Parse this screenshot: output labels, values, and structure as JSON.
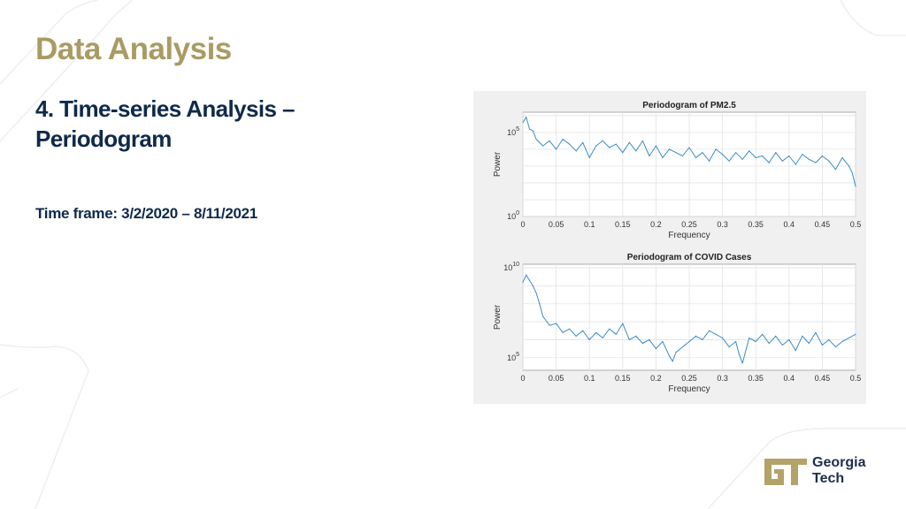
{
  "slide": {
    "title": "Data Analysis",
    "subtitle_line1": "4. Time-series Analysis –",
    "subtitle_line2": "Periodogram",
    "timeframe": "Time frame: 3/2/2020 – 8/11/2021"
  },
  "logo": {
    "monogram": "GT",
    "line1": "Georgia",
    "line2": "Tech",
    "color": "#b3a369"
  },
  "colors": {
    "title": "#a99b63",
    "heading": "#0f2a4a",
    "series": "#3a8dc8"
  },
  "chart_data": [
    {
      "type": "line",
      "title": "Periodogram of PM2.5",
      "xlabel": "Frequency",
      "ylabel": "Power",
      "xlim": [
        0,
        0.5
      ],
      "ylim_log10": [
        0,
        6.2
      ],
      "y_scale": "log",
      "grid": true,
      "xticks": [
        "0",
        "0.05",
        "0.1",
        "0.15",
        "0.2",
        "0.25",
        "0.3",
        "0.35",
        "0.4",
        "0.45",
        "0.5"
      ],
      "yticks": [
        {
          "base": "10",
          "exp": "0",
          "value_log10": 0
        },
        {
          "base": "10",
          "exp": "5",
          "value_log10": 5
        }
      ],
      "series": [
        {
          "x": [
            0,
            0.005,
            0.01,
            0.015,
            0.02,
            0.03,
            0.04,
            0.05,
            0.06,
            0.07,
            0.08,
            0.09,
            0.1,
            0.11,
            0.12,
            0.13,
            0.14,
            0.15,
            0.16,
            0.17,
            0.18,
            0.19,
            0.2,
            0.21,
            0.22,
            0.23,
            0.24,
            0.25,
            0.26,
            0.27,
            0.28,
            0.29,
            0.3,
            0.31,
            0.32,
            0.33,
            0.34,
            0.35,
            0.36,
            0.37,
            0.38,
            0.39,
            0.4,
            0.41,
            0.42,
            0.43,
            0.44,
            0.45,
            0.46,
            0.47,
            0.48,
            0.49,
            0.495,
            0.5
          ],
          "y_log10": [
            5.6,
            5.9,
            5.2,
            5.1,
            4.6,
            4.2,
            4.5,
            4.0,
            4.6,
            4.3,
            3.9,
            4.4,
            3.5,
            4.2,
            4.5,
            4.1,
            4.3,
            3.8,
            4.4,
            3.9,
            4.5,
            3.6,
            4.2,
            3.5,
            4.0,
            3.8,
            3.6,
            4.1,
            3.5,
            3.8,
            3.3,
            4.0,
            3.7,
            3.3,
            3.8,
            3.4,
            3.9,
            3.5,
            3.6,
            3.2,
            3.8,
            3.3,
            3.6,
            3.1,
            3.7,
            3.4,
            3.2,
            3.6,
            3.3,
            2.8,
            3.5,
            3.0,
            2.6,
            1.8
          ]
        }
      ]
    },
    {
      "type": "line",
      "title": "Periodogram of COVID Cases",
      "xlabel": "Frequency",
      "ylabel": "Power",
      "xlim": [
        0,
        0.5
      ],
      "ylim_log10": [
        4.3,
        10.2
      ],
      "y_scale": "log",
      "grid": true,
      "xticks": [
        "0",
        "0.05",
        "0.1",
        "0.15",
        "0.2",
        "0.25",
        "0.3",
        "0.35",
        "0.4",
        "0.45",
        "0.5"
      ],
      "yticks": [
        {
          "base": "10",
          "exp": "5",
          "value_log10": 5
        },
        {
          "base": "10",
          "exp": "10",
          "value_log10": 10
        }
      ],
      "series": [
        {
          "x": [
            0,
            0.005,
            0.01,
            0.015,
            0.02,
            0.025,
            0.03,
            0.04,
            0.05,
            0.06,
            0.07,
            0.08,
            0.09,
            0.1,
            0.11,
            0.12,
            0.13,
            0.14,
            0.15,
            0.16,
            0.17,
            0.18,
            0.19,
            0.2,
            0.21,
            0.22,
            0.225,
            0.23,
            0.24,
            0.25,
            0.26,
            0.27,
            0.28,
            0.29,
            0.3,
            0.31,
            0.32,
            0.325,
            0.33,
            0.34,
            0.35,
            0.36,
            0.37,
            0.38,
            0.39,
            0.4,
            0.41,
            0.42,
            0.43,
            0.44,
            0.45,
            0.46,
            0.47,
            0.48,
            0.49,
            0.5
          ],
          "y_log10": [
            9.2,
            9.6,
            9.3,
            9.0,
            8.6,
            8.0,
            7.3,
            6.8,
            6.9,
            6.4,
            6.6,
            6.2,
            6.5,
            6.0,
            6.4,
            6.1,
            6.6,
            6.3,
            6.9,
            6.0,
            6.2,
            5.8,
            6.0,
            5.5,
            5.9,
            5.1,
            4.8,
            5.3,
            5.6,
            5.9,
            6.2,
            6.0,
            6.5,
            6.3,
            6.1,
            5.6,
            5.9,
            5.2,
            4.7,
            6.1,
            5.9,
            6.3,
            5.8,
            6.2,
            5.7,
            6.0,
            5.4,
            6.2,
            5.8,
            6.4,
            5.7,
            6.0,
            5.6,
            5.9,
            6.1,
            6.3
          ]
        }
      ]
    }
  ]
}
